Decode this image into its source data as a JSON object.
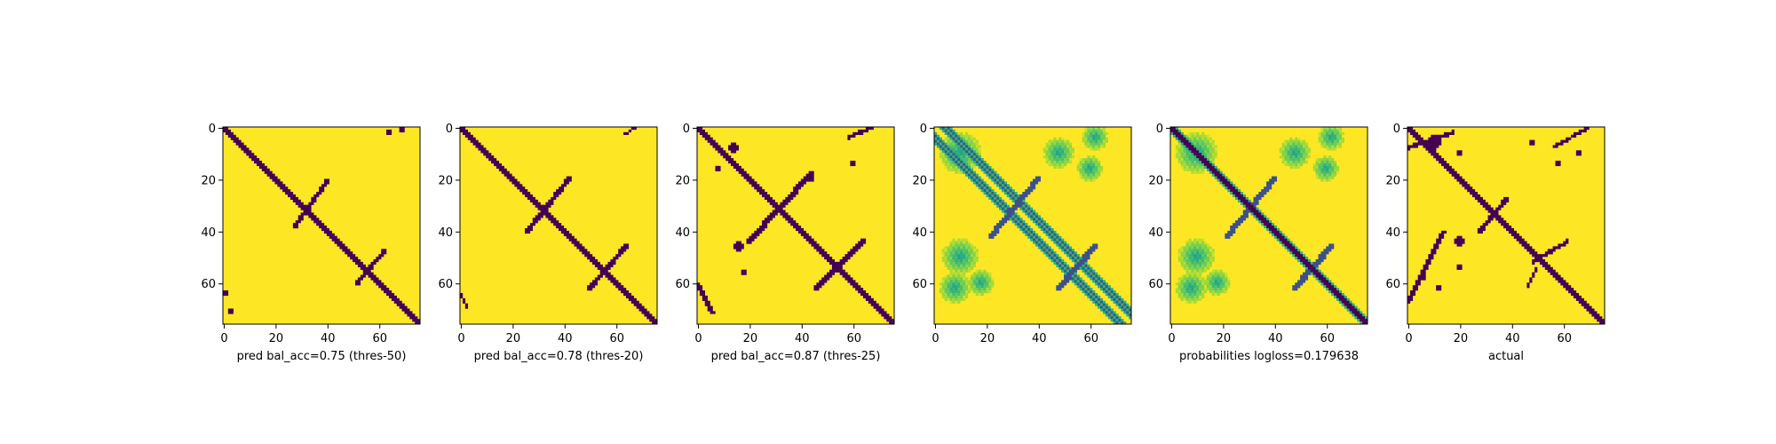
{
  "chart_data": [
    {
      "type": "heatmap",
      "title": "",
      "xlabel": "pred bal_acc=0.75 (thres-50)",
      "ylabel": "",
      "xlim": [
        0,
        76
      ],
      "ylim": [
        76,
        0
      ],
      "x_ticks": [
        0,
        20,
        40,
        60
      ],
      "y_ticks": [
        0,
        20,
        40,
        60
      ],
      "colormap": "viridis",
      "color_low": "#440154",
      "color_high": "#fde725",
      "kind": "binary",
      "band_width": 2.6,
      "features": [
        {
          "kind": "diag",
          "from": 0,
          "to": 76,
          "width": 2.6
        },
        {
          "kind": "seg",
          "x1": 28,
          "y1": 38,
          "x2": 40,
          "y2": 21,
          "width": 1.6
        },
        {
          "kind": "seg",
          "x1": 52,
          "y1": 60,
          "x2": 62,
          "y2": 48,
          "width": 1.6
        },
        {
          "kind": "pt",
          "x": 64,
          "y": 2,
          "r": 0.8
        },
        {
          "kind": "pt",
          "x": 69,
          "y": 1,
          "r": 0.8
        },
        {
          "kind": "pt",
          "x": 1,
          "y": 64,
          "r": 0.8
        },
        {
          "kind": "pt",
          "x": 3,
          "y": 71,
          "r": 0.8
        }
      ]
    },
    {
      "type": "heatmap",
      "title": "",
      "xlabel": "pred bal_acc=0.78 (thres-20)",
      "ylabel": "",
      "xlim": [
        0,
        76
      ],
      "ylim": [
        76,
        0
      ],
      "x_ticks": [
        0,
        20,
        40,
        60
      ],
      "y_ticks": [
        0,
        20,
        40,
        60
      ],
      "colormap": "viridis",
      "color_low": "#440154",
      "color_high": "#fde725",
      "kind": "binary",
      "band_width": 3.0,
      "features": [
        {
          "kind": "diag",
          "from": 0,
          "to": 76,
          "width": 3.0
        },
        {
          "kind": "seg",
          "x1": 26,
          "y1": 40,
          "x2": 42,
          "y2": 20,
          "width": 1.8
        },
        {
          "kind": "seg",
          "x1": 50,
          "y1": 62,
          "x2": 64,
          "y2": 46,
          "width": 1.8
        },
        {
          "kind": "seg",
          "x1": 63,
          "y1": 3,
          "x2": 68,
          "y2": 0,
          "width": 1.0
        },
        {
          "kind": "seg",
          "x1": 0,
          "y1": 64,
          "x2": 3,
          "y2": 70,
          "width": 1.0
        }
      ]
    },
    {
      "type": "heatmap",
      "title": "",
      "xlabel": "pred bal_acc=0.87 (thres-25)",
      "ylabel": "",
      "xlim": [
        0,
        76
      ],
      "ylim": [
        76,
        0
      ],
      "x_ticks": [
        0,
        20,
        40,
        60
      ],
      "y_ticks": [
        0,
        20,
        40,
        60
      ],
      "colormap": "viridis",
      "color_low": "#440154",
      "color_high": "#fde725",
      "kind": "binary",
      "band_width": 3.6,
      "features": [
        {
          "kind": "diag",
          "from": 0,
          "to": 76,
          "width": 3.6
        },
        {
          "kind": "seg",
          "x1": 20,
          "y1": 44,
          "x2": 44,
          "y2": 18,
          "width": 2.2
        },
        {
          "kind": "seg",
          "x1": 46,
          "y1": 62,
          "x2": 64,
          "y2": 44,
          "width": 2.2
        },
        {
          "kind": "seg",
          "x1": 58,
          "y1": 4,
          "x2": 68,
          "y2": 0,
          "width": 1.4
        },
        {
          "kind": "seg",
          "x1": 0,
          "y1": 60,
          "x2": 6,
          "y2": 72,
          "width": 1.4
        },
        {
          "kind": "pt",
          "x": 14,
          "y": 8,
          "r": 1.8
        },
        {
          "kind": "pt",
          "x": 8,
          "y": 16,
          "r": 1.4
        },
        {
          "kind": "pt",
          "x": 60,
          "y": 14,
          "r": 1.4
        },
        {
          "kind": "pt",
          "x": 16,
          "y": 46,
          "r": 1.6
        },
        {
          "kind": "pt",
          "x": 44,
          "y": 20,
          "r": 1.4
        },
        {
          "kind": "pt",
          "x": 18,
          "y": 56,
          "r": 1.4
        }
      ]
    },
    {
      "type": "heatmap",
      "title": "",
      "xlabel": "",
      "ylabel": "",
      "xlim": [
        0,
        76
      ],
      "ylim": [
        76,
        0
      ],
      "x_ticks": [
        0,
        20,
        40,
        60
      ],
      "y_ticks": [
        0,
        20,
        40,
        60
      ],
      "colormap": "viridis",
      "color_low": "#440154",
      "color_high": "#fde725",
      "kind": "prob",
      "diag_offsets": [
        3,
        5
      ],
      "features": [
        {
          "kind": "seg",
          "x1": 22,
          "y1": 42,
          "x2": 40,
          "y2": 20,
          "width": 2.2
        },
        {
          "kind": "seg",
          "x1": 48,
          "y1": 62,
          "x2": 62,
          "y2": 46,
          "width": 2.2
        },
        {
          "kind": "blob",
          "x": 10,
          "y": 10,
          "r": 8
        },
        {
          "kind": "blob",
          "x": 48,
          "y": 10,
          "r": 6
        },
        {
          "kind": "blob",
          "x": 62,
          "y": 4,
          "r": 5
        },
        {
          "kind": "blob",
          "x": 10,
          "y": 50,
          "r": 7
        },
        {
          "kind": "blob",
          "x": 8,
          "y": 62,
          "r": 6
        },
        {
          "kind": "blob",
          "x": 18,
          "y": 60,
          "r": 5
        },
        {
          "kind": "blob",
          "x": 60,
          "y": 16,
          "r": 5
        }
      ]
    },
    {
      "type": "heatmap",
      "title": "",
      "xlabel": "probabilities logloss=0.179638",
      "ylabel": "",
      "xlim": [
        0,
        76
      ],
      "ylim": [
        76,
        0
      ],
      "x_ticks": [
        0,
        20,
        40,
        60
      ],
      "y_ticks": [
        0,
        20,
        40,
        60
      ],
      "colormap": "viridis",
      "color_low": "#440154",
      "color_high": "#fde725",
      "kind": "prob",
      "diag_offsets": [
        0
      ],
      "diag_width": 2.6,
      "features": [
        {
          "kind": "seg",
          "x1": 22,
          "y1": 42,
          "x2": 40,
          "y2": 20,
          "width": 2.2
        },
        {
          "kind": "seg",
          "x1": 48,
          "y1": 62,
          "x2": 62,
          "y2": 46,
          "width": 2.2
        },
        {
          "kind": "blob",
          "x": 10,
          "y": 10,
          "r": 8
        },
        {
          "kind": "blob",
          "x": 48,
          "y": 10,
          "r": 6
        },
        {
          "kind": "blob",
          "x": 62,
          "y": 4,
          "r": 5
        },
        {
          "kind": "blob",
          "x": 10,
          "y": 50,
          "r": 7
        },
        {
          "kind": "blob",
          "x": 8,
          "y": 62,
          "r": 6
        },
        {
          "kind": "blob",
          "x": 18,
          "y": 60,
          "r": 5
        },
        {
          "kind": "blob",
          "x": 60,
          "y": 16,
          "r": 5
        }
      ]
    },
    {
      "type": "heatmap",
      "title": "",
      "xlabel": "actual",
      "ylabel": "",
      "xlim": [
        0,
        76
      ],
      "ylim": [
        76,
        0
      ],
      "x_ticks": [
        0,
        20,
        40,
        60
      ],
      "y_ticks": [
        0,
        20,
        40,
        60
      ],
      "colormap": "viridis",
      "color_low": "#440154",
      "color_high": "#fde725",
      "kind": "binary",
      "band_width": 2.8,
      "features": [
        {
          "kind": "diag",
          "from": 0,
          "to": 76,
          "width": 2.8
        },
        {
          "kind": "seg",
          "x1": 28,
          "y1": 40,
          "x2": 38,
          "y2": 28,
          "width": 1.8
        },
        {
          "kind": "seg",
          "x1": 0,
          "y1": 68,
          "x2": 14,
          "y2": 40,
          "width": 1.4
        },
        {
          "kind": "seg",
          "x1": 0,
          "y1": 8,
          "x2": 18,
          "y2": 2,
          "width": 1.4
        },
        {
          "kind": "seg",
          "x1": 48,
          "y1": 52,
          "x2": 62,
          "y2": 44,
          "width": 1.4
        },
        {
          "kind": "seg",
          "x1": 50,
          "y1": 54,
          "x2": 46,
          "y2": 62,
          "width": 1.2
        },
        {
          "kind": "seg",
          "x1": 56,
          "y1": 8,
          "x2": 70,
          "y2": 0,
          "width": 1.2
        },
        {
          "kind": "pt",
          "x": 10,
          "y": 6,
          "r": 2.6
        },
        {
          "kind": "pt",
          "x": 20,
          "y": 44,
          "r": 2.0
        },
        {
          "kind": "pt",
          "x": 20,
          "y": 54,
          "r": 1.5
        },
        {
          "kind": "pt",
          "x": 48,
          "y": 6,
          "r": 1.5
        },
        {
          "kind": "pt",
          "x": 20,
          "y": 10,
          "r": 1.3
        },
        {
          "kind": "pt",
          "x": 6,
          "y": 58,
          "r": 1.5
        },
        {
          "kind": "pt",
          "x": 12,
          "y": 62,
          "r": 1.2
        },
        {
          "kind": "pt",
          "x": 58,
          "y": 14,
          "r": 1.2
        },
        {
          "kind": "pt",
          "x": 66,
          "y": 10,
          "r": 1.2
        }
      ]
    }
  ]
}
